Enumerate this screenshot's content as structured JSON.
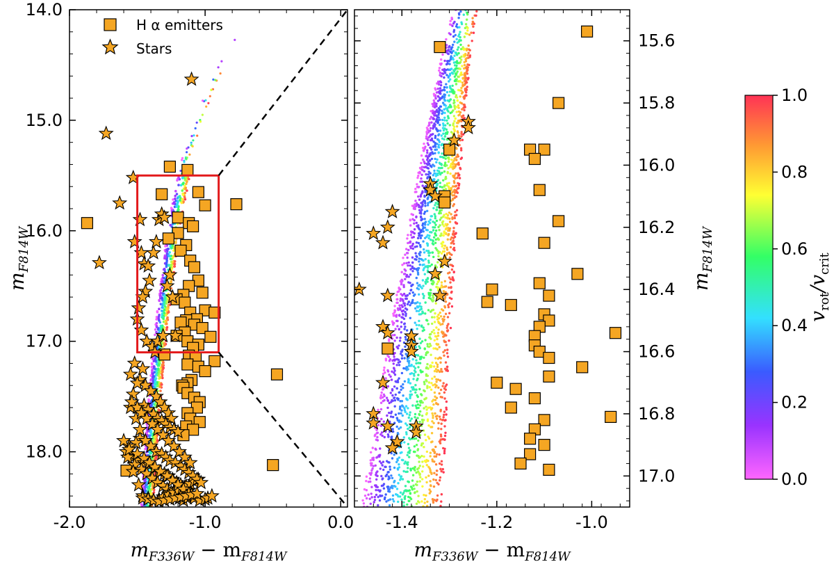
{
  "chart_data": [
    {
      "type": "scatter",
      "panel": "left",
      "xlabel": "m_F336W − m_F814W",
      "ylabel": "m_F814W",
      "xlim": [
        -2.0,
        0.05
      ],
      "ylim": [
        18.5,
        14.0
      ],
      "y_inverted": true,
      "xticks": [
        -2.0,
        -1.0,
        0.0
      ],
      "xtick_labels": [
        "-2.0",
        "-1.0",
        "0.0"
      ],
      "yticks": [
        14.0,
        15.0,
        16.0,
        17.0,
        18.0
      ],
      "ytick_labels": [
        "14.0",
        "15.0",
        "16.0",
        "17.0",
        "18.0"
      ],
      "legend": {
        "placement": "top-left",
        "entries": [
          "H α emitters",
          "Stars"
        ]
      },
      "zoom_box": {
        "x": [
          -1.5,
          -0.9
        ],
        "y": [
          15.5,
          17.1
        ],
        "color": "#e31a1c"
      },
      "series": [
        {
          "name": "H α emitters",
          "marker": "square",
          "x": [
            -1.87,
            -1.26,
            -1.13,
            -1.32,
            -1.05,
            -1.0,
            -0.77,
            -1.2,
            -1.12,
            -1.09,
            -1.2,
            -1.27,
            -1.14,
            -1.18,
            -1.11,
            -1.08,
            -1.05,
            -1.12,
            -1.02,
            -1.16,
            -1.21,
            -1.15,
            -1.0,
            -0.93,
            -1.11,
            -1.06,
            -1.14,
            -1.18,
            -1.08,
            -1.02,
            -1.15,
            -1.21,
            -0.96,
            -1.13,
            -1.05,
            -1.09,
            -1.3,
            -1.12,
            -1.07,
            -0.93,
            -1.13,
            -1.05,
            -1.0,
            -0.47,
            -1.1,
            -1.13,
            -1.17,
            -1.16,
            -1.13,
            -1.08,
            -1.04,
            -1.06,
            -1.13,
            -1.11,
            -1.04,
            -1.14,
            -1.09,
            -1.16,
            -1.58,
            -0.5
          ],
          "y": [
            15.93,
            15.42,
            15.45,
            15.67,
            15.65,
            15.77,
            15.76,
            15.88,
            15.93,
            15.96,
            16.02,
            16.07,
            16.13,
            16.18,
            16.27,
            16.33,
            16.45,
            16.5,
            16.56,
            16.58,
            16.62,
            16.65,
            16.72,
            16.74,
            16.74,
            16.8,
            16.81,
            16.83,
            16.85,
            16.88,
            16.92,
            16.95,
            16.96,
            17.0,
            17.03,
            17.06,
            17.12,
            17.13,
            17.15,
            17.18,
            17.21,
            17.23,
            17.27,
            17.3,
            17.35,
            17.38,
            17.4,
            17.42,
            17.47,
            17.51,
            17.55,
            17.6,
            17.65,
            17.7,
            17.73,
            17.77,
            17.8,
            17.85,
            18.17,
            18.12
          ],
          "color": "#f5a623"
        },
        {
          "name": "Stars",
          "marker": "star",
          "x": [
            -1.1,
            -1.73,
            -1.53,
            -1.63,
            -1.78,
            -1.48,
            -1.52,
            -1.47,
            -1.45,
            -1.42,
            -1.38,
            -1.36,
            -1.34,
            -1.32,
            -1.3,
            -1.41,
            -1.44,
            -1.46,
            -1.49,
            -1.5,
            -1.47,
            -1.43,
            -1.39,
            -1.37,
            -1.35,
            -1.31,
            -1.28,
            -1.26,
            -1.24,
            -1.22,
            -1.52,
            -1.55,
            -1.48,
            -1.44,
            -1.4,
            -1.36,
            -1.33,
            -1.3,
            -1.27,
            -1.25,
            -1.46,
            -1.5,
            -1.53,
            -1.45,
            -1.42,
            -1.38,
            -1.35,
            -1.32,
            -1.29,
            -1.26,
            -1.23,
            -1.2,
            -1.48,
            -1.51,
            -1.56,
            -1.58,
            -1.54,
            -1.49,
            -1.45,
            -1.41,
            -1.37,
            -1.34,
            -1.3,
            -1.27,
            -1.24,
            -1.21,
            -1.18,
            -1.15,
            -1.12,
            -1.1,
            -1.52,
            -1.47,
            -1.43,
            -1.39,
            -1.35,
            -1.31,
            -1.28,
            -1.25,
            -1.22,
            -1.19,
            -1.16,
            -1.13,
            -1.6,
            -1.57,
            -1.53,
            -1.49,
            -1.46,
            -1.42,
            -1.38,
            -1.34,
            -1.31,
            -1.27,
            -1.23,
            -1.2,
            -1.17,
            -1.14,
            -1.11,
            -1.08,
            -1.05,
            -1.55,
            -1.51,
            -1.48,
            -1.44,
            -1.4,
            -1.36,
            -1.32,
            -1.29,
            -1.26,
            -1.22,
            -1.18,
            -1.15,
            -1.12,
            -1.09,
            -1.06,
            -1.03,
            -1.56,
            -1.5,
            -1.45,
            -1.41,
            -1.37,
            -1.33,
            -1.28,
            -1.24,
            -1.2,
            -1.16,
            -1.12,
            -1.08,
            -1.04,
            -1.0,
            -0.98,
            -0.95,
            -1.46,
            -1.42,
            -1.38,
            -1.34,
            -1.3,
            -1.26,
            -1.22,
            -1.18,
            -1.14,
            -1.1,
            -1.06,
            -1.54,
            -1.5,
            -1.47,
            -1.43,
            -1.39,
            -1.35,
            -1.31,
            -1.27,
            -1.23,
            -1.19,
            -1.15,
            -1.11
          ],
          "y": [
            14.63,
            15.12,
            15.52,
            15.75,
            16.29,
            15.9,
            16.1,
            16.2,
            16.3,
            16.32,
            16.2,
            16.1,
            15.9,
            15.85,
            15.88,
            16.45,
            16.55,
            16.6,
            16.7,
            16.8,
            16.9,
            17.0,
            17.05,
            17.1,
            17.0,
            16.95,
            16.5,
            16.4,
            16.6,
            16.95,
            17.2,
            17.3,
            17.35,
            17.4,
            17.45,
            17.5,
            17.55,
            17.6,
            17.65,
            17.7,
            17.25,
            17.38,
            17.48,
            17.58,
            17.62,
            17.66,
            17.7,
            17.72,
            17.75,
            17.78,
            17.8,
            17.82,
            17.88,
            17.92,
            17.95,
            18.0,
            18.05,
            18.08,
            18.1,
            18.12,
            18.15,
            18.18,
            18.2,
            18.22,
            18.25,
            18.28,
            18.3,
            18.32,
            18.35,
            18.38,
            18.12,
            18.16,
            18.2,
            18.24,
            18.28,
            18.31,
            18.34,
            18.37,
            18.4,
            18.42,
            18.44,
            18.42,
            17.9,
            18.05,
            18.18,
            18.3,
            18.4,
            18.42,
            18.44,
            18.43,
            18.41,
            18.39,
            18.37,
            18.35,
            18.33,
            18.31,
            18.29,
            18.27,
            18.25,
            17.6,
            17.7,
            17.8,
            17.9,
            17.95,
            18.0,
            18.02,
            18.05,
            18.08,
            18.1,
            18.13,
            18.16,
            18.19,
            18.22,
            18.25,
            18.28,
            17.98,
            18.02,
            18.06,
            18.1,
            18.14,
            18.18,
            18.22,
            18.26,
            18.3,
            18.34,
            18.38,
            18.42,
            18.44,
            18.43,
            18.42,
            18.4,
            18.42,
            18.43,
            18.44,
            18.45,
            18.44,
            18.43,
            18.42,
            18.41,
            18.4,
            18.39,
            18.38,
            17.55,
            17.6,
            17.65,
            17.7,
            17.75,
            17.8,
            17.85,
            17.9,
            17.95,
            18.0,
            18.05,
            18.1
          ],
          "color": "#f5a623"
        },
        {
          "name": "",
          "marker": "dot",
          "description_free": true,
          "colorscale": "v_rot/v_crit",
          "ridge_x": [
            -1.47,
            -1.45,
            -1.43,
            -1.4,
            -1.37,
            -1.33,
            -1.29,
            -1.25,
            -1.21,
            -1.17,
            -1.12,
            -1.08,
            -1.04,
            -1.0,
            -0.95,
            -0.9,
            -0.85,
            -0.8,
            -0.75,
            -0.7
          ],
          "ridge_y": [
            18.45,
            18.1,
            17.7,
            17.3,
            16.9,
            16.5,
            16.1,
            15.8,
            15.55,
            15.35,
            15.2,
            15.05,
            14.9,
            14.75,
            14.62,
            14.5,
            14.4,
            14.3,
            14.2,
            14.1
          ]
        }
      ]
    },
    {
      "type": "scatter",
      "panel": "right",
      "xlabel": "m_F336W − m_F814W",
      "ylabel": "m_F814W",
      "xlim": [
        -1.5,
        -0.92
      ],
      "ylim": [
        17.1,
        15.5
      ],
      "y_inverted": true,
      "xticks": [
        -1.4,
        -1.2,
        -1.0
      ],
      "xtick_labels": [
        "-1.4",
        "-1.2",
        "-1.0"
      ],
      "yticks": [
        15.6,
        15.8,
        16.0,
        16.2,
        16.4,
        16.6,
        16.8,
        17.0
      ],
      "ytick_labels": [
        "15.6",
        "15.8",
        "16.0",
        "16.2",
        "16.4",
        "16.6",
        "16.8",
        "17.0"
      ],
      "series": [
        {
          "name": "H α emitters",
          "marker": "square",
          "x": [
            -1.01,
            -1.32,
            -1.07,
            -1.3,
            -1.1,
            -1.13,
            -1.12,
            -1.31,
            -1.31,
            -1.11,
            -1.07,
            -1.23,
            -1.1,
            -1.03,
            -1.11,
            -1.21,
            -1.09,
            -1.17,
            -1.1,
            -1.09,
            -1.11,
            -1.12,
            -1.12,
            -1.11,
            -1.09,
            -1.02,
            -1.09,
            -1.2,
            -1.16,
            -1.12,
            -1.17,
            -1.1,
            -1.12,
            -1.13,
            -1.1,
            -1.13,
            -1.15,
            -1.09,
            -1.43,
            -1.22,
            -0.95,
            -0.96
          ],
          "y": [
            15.57,
            15.62,
            15.8,
            15.95,
            15.95,
            15.95,
            15.98,
            16.1,
            16.12,
            16.08,
            16.18,
            16.22,
            16.25,
            16.35,
            16.38,
            16.4,
            16.42,
            16.45,
            16.48,
            16.5,
            16.52,
            16.55,
            16.58,
            16.6,
            16.62,
            16.65,
            16.68,
            16.7,
            16.72,
            16.75,
            16.78,
            16.82,
            16.85,
            16.88,
            16.9,
            16.93,
            16.96,
            16.98,
            16.59,
            16.44,
            16.54,
            16.81
          ],
          "color": "#f5a623"
        },
        {
          "name": "Stars",
          "marker": "star",
          "x": [
            -1.26,
            -1.26,
            -1.29,
            -1.34,
            -1.34,
            -1.33,
            -1.42,
            -1.43,
            -1.46,
            -1.44,
            -1.31,
            -1.33,
            -1.43,
            -1.44,
            -1.43,
            -1.38,
            -1.38,
            -1.38,
            -1.44,
            -1.46,
            -1.46,
            -1.43,
            -1.37,
            -1.37,
            -1.41,
            -1.32,
            -1.49,
            -1.42
          ],
          "y": [
            15.86,
            15.88,
            15.92,
            16.06,
            16.08,
            16.1,
            16.15,
            16.2,
            16.22,
            16.25,
            16.31,
            16.35,
            16.42,
            16.52,
            16.54,
            16.55,
            16.58,
            16.6,
            16.7,
            16.8,
            16.83,
            16.84,
            16.84,
            16.86,
            16.89,
            16.42,
            16.4,
            16.91
          ],
          "color": "#f5a623"
        }
      ]
    },
    {
      "type": "heatmap",
      "panel": "colorbar",
      "label": "v_rot/v_crit",
      "ticks": [
        0.0,
        0.2,
        0.4,
        0.6,
        0.8,
        1.0
      ],
      "tick_labels": [
        "0.0",
        "0.2",
        "0.4",
        "0.6",
        "0.8",
        "1.0"
      ],
      "colors": [
        "#ff66ff",
        "#8a2be2",
        "#3a5bff",
        "#33e0ff",
        "#33ff66",
        "#ffff33",
        "#ff9933",
        "#ff3355"
      ]
    }
  ],
  "labels": {
    "left_xlabel_main": "m",
    "left_xlabel_sub1": "F336W",
    "left_xlabel_mid": " − m",
    "left_xlabel_sub2": "F814W",
    "ylabel_main": "m",
    "ylabel_sub": "F814W",
    "cbar_v": "v",
    "cbar_rot": "rot",
    "cbar_slash": "/v",
    "cbar_crit": "crit"
  },
  "legend": {
    "halpha": "H α emitters",
    "stars": "Stars"
  }
}
